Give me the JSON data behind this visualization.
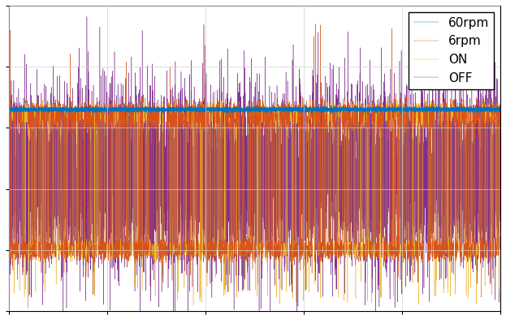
{
  "title": "",
  "xlabel": "",
  "ylabel": "",
  "legend_labels": [
    "60rpm",
    "6rpm",
    "ON",
    "OFF"
  ],
  "line_colors": [
    "#0072bd",
    "#d95319",
    "#edb120",
    "#7e2f8e"
  ],
  "n_points": 10000,
  "ylim_auto": true,
  "xlim": [
    0,
    1
  ],
  "background_color": "#ffffff",
  "legend_fontsize": 11,
  "legend_loc": "upper right",
  "figsize": [
    6.23,
    3.94
  ],
  "dpi": 100,
  "xticks": [
    0.0,
    0.2,
    0.4,
    0.6,
    0.8,
    1.0
  ],
  "ytick_count": 5
}
